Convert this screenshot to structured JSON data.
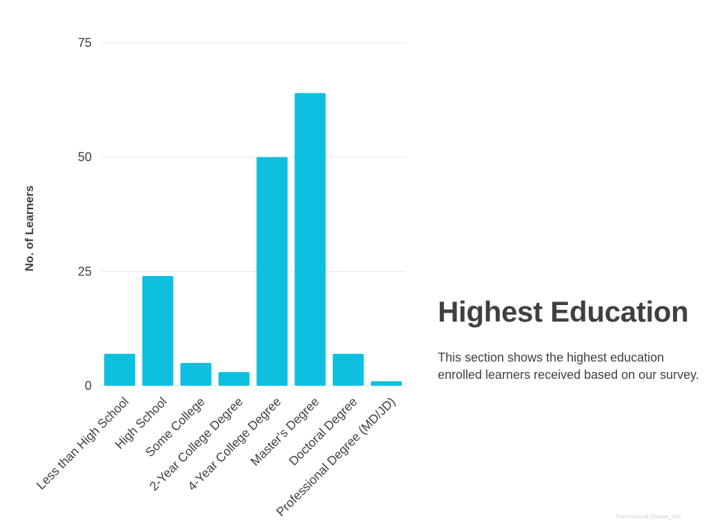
{
  "panel": {
    "title": "Highest Education",
    "description": "This section shows the highest education enrolled learners received based on our survey."
  },
  "footer": {
    "note": "Transnational Studies_edX"
  },
  "chart_data": {
    "type": "bar",
    "categories": [
      "Less than High School",
      "High School",
      "Some College",
      "2-Year College Degree",
      "4-Year College Degree",
      "Master's Degree",
      "Doctoral Degree",
      "Professional Degree (MD/JD)"
    ],
    "values": [
      7,
      24,
      5,
      3,
      50,
      64,
      7,
      1
    ],
    "xlabel": "",
    "ylabel": "No. of Learners",
    "ylim": [
      0,
      75
    ],
    "yticks": [
      "0",
      "25",
      "50",
      "75"
    ],
    "grid": true,
    "legend": "none",
    "bar_color": "#0dc0df",
    "grid_color": "#e6e6e6",
    "text_color": "#3f3f44"
  }
}
